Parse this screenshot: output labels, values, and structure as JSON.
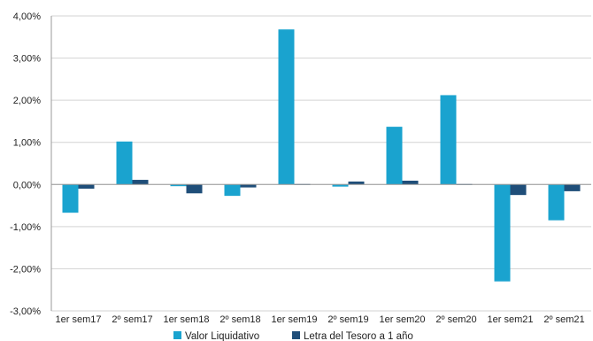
{
  "chart_data": {
    "type": "bar",
    "categories": [
      "1er sem17",
      "2º sem17",
      "1er sem18",
      "2º sem18",
      "1er sem19",
      "2º sem19",
      "1er sem20",
      "2º sem20",
      "1er sem21",
      "2º sem21"
    ],
    "series": [
      {
        "name": "Valor Liquidativo",
        "color": "#1aa3cf",
        "values": [
          -0.67,
          1.02,
          -0.04,
          -0.27,
          3.68,
          -0.05,
          1.37,
          2.12,
          -2.3,
          -0.85
        ]
      },
      {
        "name": "Letra del Tesoro a 1 año",
        "color": "#1f4e79",
        "values": [
          -0.1,
          0.11,
          -0.21,
          -0.07,
          0.01,
          0.07,
          0.09,
          0.01,
          -0.25,
          -0.16
        ]
      }
    ],
    "ylim": [
      -3,
      4
    ],
    "yticks": [
      "-3,00%",
      "-2,00%",
      "-1,00%",
      "0,00%",
      "1,00%",
      "2,00%",
      "3,00%",
      "4,00%"
    ],
    "grid": true,
    "legend_position": "bottom"
  }
}
